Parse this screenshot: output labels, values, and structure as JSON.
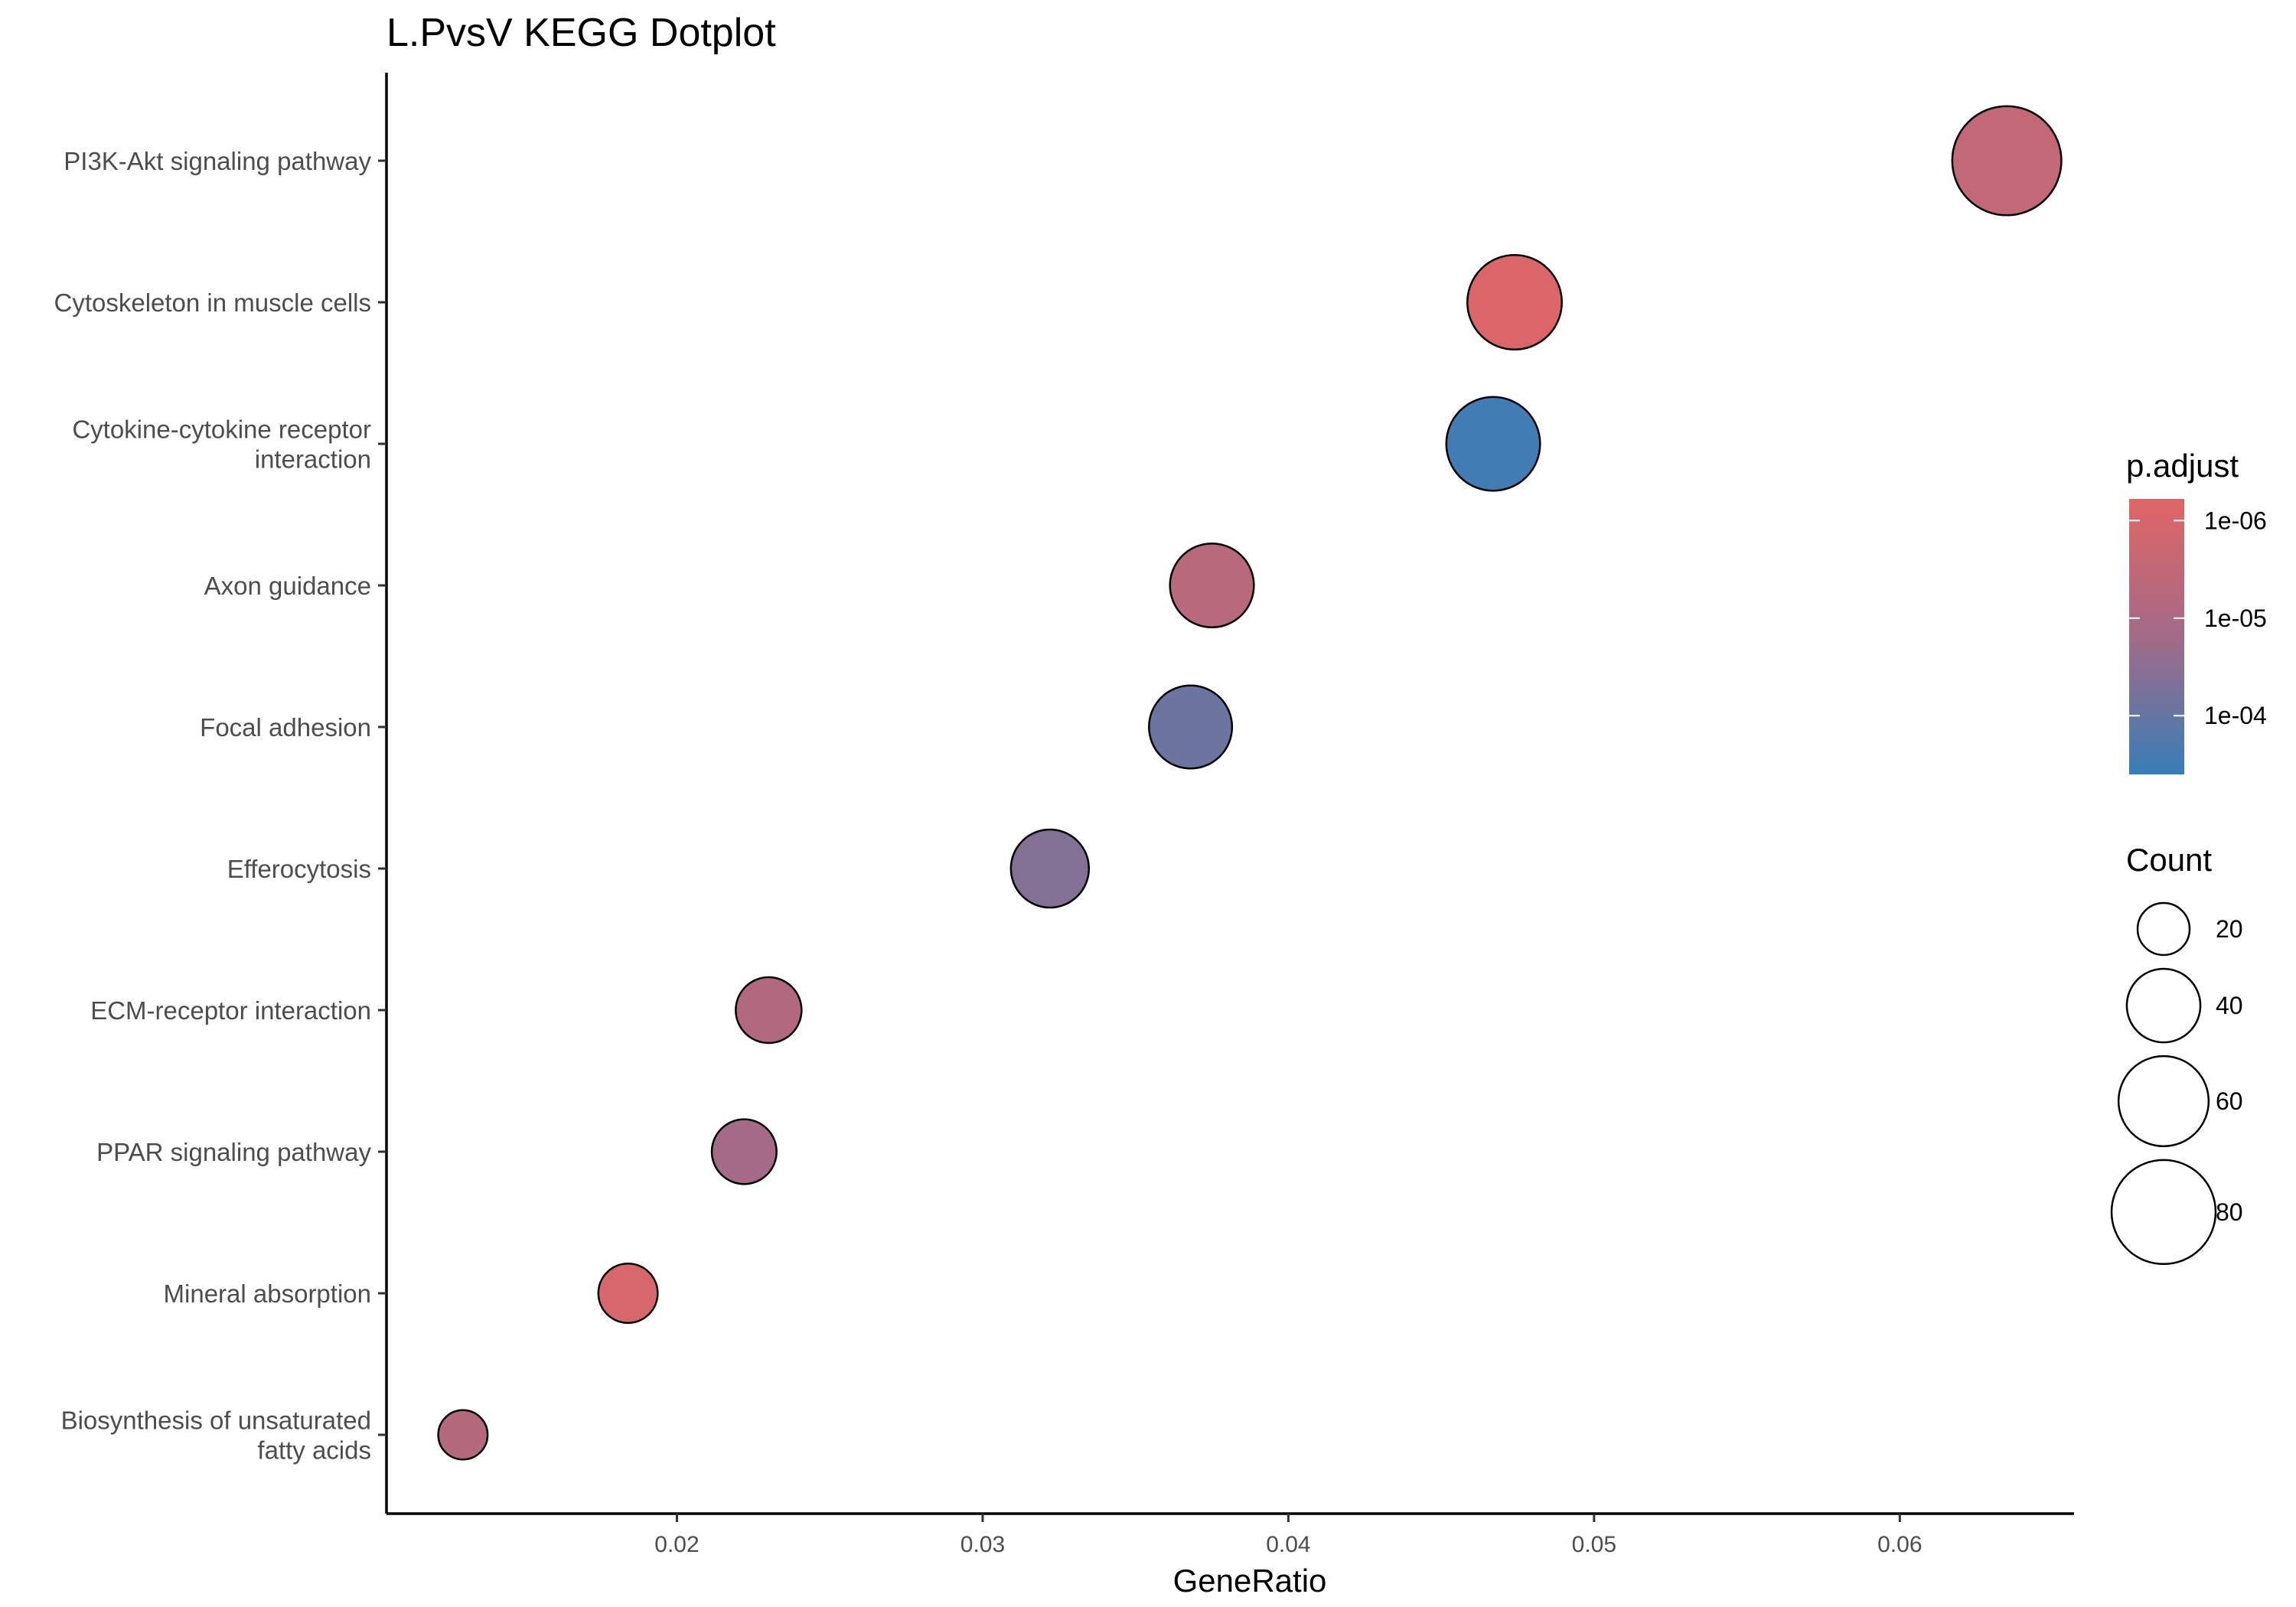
{
  "chart_data": {
    "type": "scatter",
    "title": "L.PvsV KEGG Dotplot",
    "xlabel": "GeneRatio",
    "ylabel": "",
    "xlim": [
      0.0105,
      0.0657
    ],
    "x_ticks": [
      "0.02",
      "0.03",
      "0.04",
      "0.05",
      "0.06"
    ],
    "x_tick_values": [
      0.02,
      0.03,
      0.04,
      0.05,
      0.06
    ],
    "grid": false,
    "categories": [
      [
        "PI3K-Akt signaling pathway"
      ],
      [
        "Cytoskeleton in muscle cells"
      ],
      [
        "Cytokine-cytokine receptor",
        "interaction"
      ],
      [
        "Axon guidance"
      ],
      [
        "Focal adhesion"
      ],
      [
        "Efferocytosis"
      ],
      [
        "ECM-receptor interaction"
      ],
      [
        "PPAR signaling pathway"
      ],
      [
        "Mineral absorption"
      ],
      [
        "Biosynthesis of unsaturated",
        "fatty acids"
      ]
    ],
    "points": [
      {
        "x": 0.0635,
        "count": 88,
        "p_adjust": 3e-06
      },
      {
        "x": 0.0474,
        "count": 66,
        "p_adjust": 8e-07
      },
      {
        "x": 0.0467,
        "count": 65,
        "p_adjust": 0.0003
      },
      {
        "x": 0.0375,
        "count": 52,
        "p_adjust": 5e-06
      },
      {
        "x": 0.0368,
        "count": 51,
        "p_adjust": 8e-05
      },
      {
        "x": 0.0322,
        "count": 45,
        "p_adjust": 4e-05
      },
      {
        "x": 0.023,
        "count": 32,
        "p_adjust": 7e-06
      },
      {
        "x": 0.0222,
        "count": 31,
        "p_adjust": 1.5e-05
      },
      {
        "x": 0.0184,
        "count": 26,
        "p_adjust": 1e-06
      },
      {
        "x": 0.013,
        "count": 18,
        "p_adjust": 6e-06
      }
    ],
    "color_legend": {
      "title": "p.adjust",
      "labels": [
        "1e-06",
        "1e-05",
        "1e-04"
      ],
      "label_values": [
        1e-06,
        1e-05,
        0.0001
      ],
      "range": [
        0.0004,
        6e-07
      ],
      "low_color": "#377eb8",
      "high_color": "#e06666",
      "mid_color": "#a36a87"
    },
    "size_legend": {
      "title": "Count",
      "values": [
        20,
        40,
        60,
        80
      ]
    },
    "legend_position": "right"
  }
}
